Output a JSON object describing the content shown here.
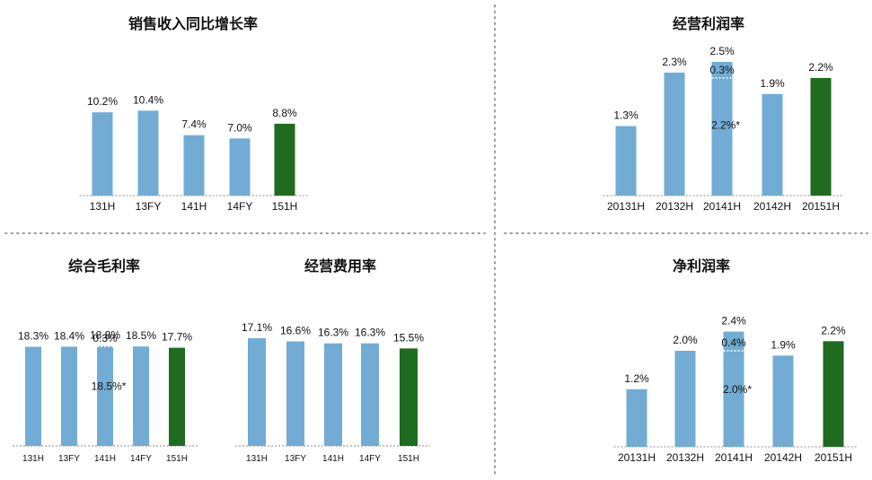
{
  "chart_data": [
    {
      "id": "sales-growth",
      "type": "bar",
      "title": "销售收入同比增长率",
      "categories": [
        "131H",
        "13FY",
        "141H",
        "14FY",
        "151H"
      ],
      "values": [
        10.2,
        10.4,
        7.4,
        7.0,
        8.8
      ],
      "labels": [
        "10.2%",
        "10.4%",
        "7.4%",
        "7.0%",
        "8.8%"
      ],
      "highlight_index": 4
    },
    {
      "id": "operating-margin",
      "type": "bar",
      "title": "经营利润率",
      "categories": [
        "20131H",
        "20132H",
        "20141H",
        "20142H",
        "20151H"
      ],
      "values": [
        1.3,
        2.3,
        2.5,
        1.9,
        2.2
      ],
      "labels": [
        "1.3%",
        "2.3%",
        "2.5%",
        "1.9%",
        "2.2%"
      ],
      "highlight_index": 4,
      "split": {
        "index": 2,
        "base": 2.2,
        "increment": 0.3,
        "base_label": "2.2%*",
        "increment_label": "0.3%"
      }
    },
    {
      "id": "gross-margin",
      "type": "bar",
      "title": "综合毛利率",
      "categories": [
        "131H",
        "13FY",
        "141H",
        "14FY",
        "151H"
      ],
      "values": [
        18.3,
        18.4,
        18.8,
        18.5,
        17.7
      ],
      "labels": [
        "18.3%",
        "18.4%",
        "18.8%",
        "18.5%",
        "17.7%"
      ],
      "highlight_index": 4,
      "split": {
        "index": 2,
        "base": 18.5,
        "increment": 0.3,
        "base_label": "18.5%*",
        "increment_label": "0.3%"
      }
    },
    {
      "id": "operating-expense",
      "type": "bar",
      "title": "经营费用率",
      "categories": [
        "131H",
        "13FY",
        "141H",
        "14FY",
        "151H"
      ],
      "values": [
        17.1,
        16.6,
        16.3,
        16.3,
        15.5
      ],
      "labels": [
        "17.1%",
        "16.6%",
        "16.3%",
        "16.3%",
        "15.5%"
      ],
      "highlight_index": 4
    },
    {
      "id": "net-margin",
      "type": "bar",
      "title": "净利润率",
      "categories": [
        "20131H",
        "20132H",
        "20141H",
        "20142H",
        "20151H"
      ],
      "values": [
        1.2,
        2.0,
        2.4,
        1.9,
        2.2
      ],
      "labels": [
        "1.2%",
        "2.0%",
        "2.4%",
        "1.9%",
        "2.2%"
      ],
      "highlight_index": 4,
      "split": {
        "index": 2,
        "base": 2.0,
        "increment": 0.4,
        "base_label": "2.0%*",
        "increment_label": "0.4%"
      }
    }
  ],
  "colors": {
    "bar": "#72acd4",
    "bar_highlight": "#1f6b1f",
    "divider": "#9a9a9a"
  }
}
